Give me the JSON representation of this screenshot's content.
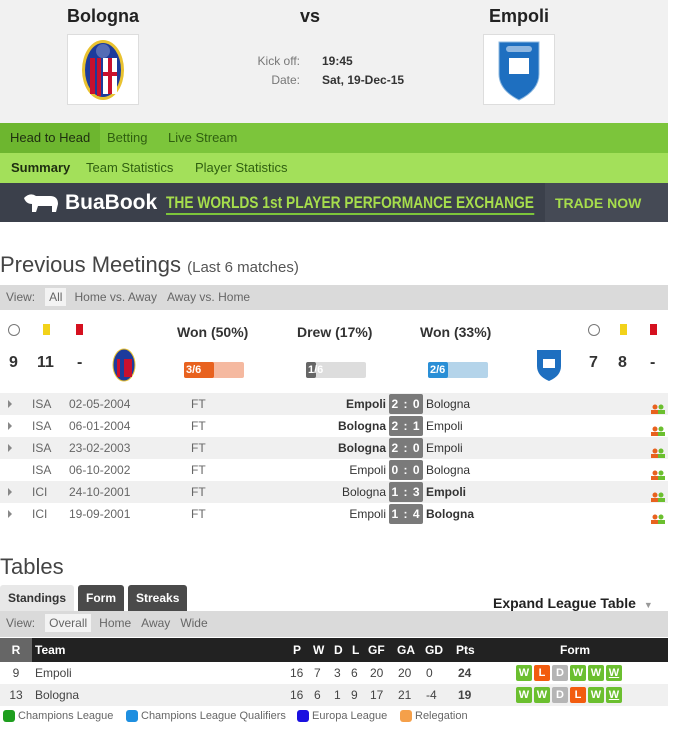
{
  "match": {
    "home": "Bologna",
    "vs": "vs",
    "away": "Empoli",
    "kickoff_label": "Kick off:",
    "kickoff": "19:45",
    "date_label": "Date:",
    "date": "Sat, 19-Dec-15"
  },
  "nav": {
    "tabs": [
      "Head to Head",
      "Betting",
      "Live Stream"
    ],
    "subtabs": [
      "Summary",
      "Team Statistics",
      "Player Statistics"
    ]
  },
  "banner": {
    "brand": "BuaBook",
    "tagline": "THE WORLDS 1st PLAYER PERFORMANCE EXCHANGE",
    "cta": "TRADE NOW"
  },
  "meetings": {
    "title": "Previous Meetings",
    "subtitle": "(Last 6 matches)",
    "view_label": "View:",
    "views": [
      "All",
      "Home vs. Away",
      "Away vs. Home"
    ],
    "home_stats": {
      "goals": "9",
      "yellow": "11",
      "red": "-"
    },
    "away_stats": {
      "goals": "7",
      "yellow": "8",
      "red": "-"
    },
    "summary": [
      {
        "label": "Won (50%)",
        "value": "3/6",
        "fraction": 0.5,
        "color": "#e8621f",
        "bg": "#f5b9a0"
      },
      {
        "label": "Drew (17%)",
        "value": "1/6",
        "fraction": 0.17,
        "color": "#666666",
        "bg": "#dddddd"
      },
      {
        "label": "Won (33%)",
        "value": "2/6",
        "fraction": 0.33,
        "color": "#2a8fd6",
        "bg": "#b4d4ea"
      }
    ],
    "rows": [
      {
        "comp": "ISA",
        "date": "02-05-2004",
        "status": "FT",
        "home": "Empoli",
        "score": "2 : 0",
        "away": "Bologna",
        "winner": "home",
        "expand": true
      },
      {
        "comp": "ISA",
        "date": "06-01-2004",
        "status": "FT",
        "home": "Bologna",
        "score": "2 : 1",
        "away": "Empoli",
        "winner": "home",
        "expand": true
      },
      {
        "comp": "ISA",
        "date": "23-02-2003",
        "status": "FT",
        "home": "Bologna",
        "score": "2 : 0",
        "away": "Empoli",
        "winner": "home",
        "expand": true
      },
      {
        "comp": "ISA",
        "date": "06-10-2002",
        "status": "FT",
        "home": "Empoli",
        "score": "0 : 0",
        "away": "Bologna",
        "winner": "none",
        "expand": false
      },
      {
        "comp": "ICI",
        "date": "24-10-2001",
        "status": "FT",
        "home": "Bologna",
        "score": "1 : 3",
        "away": "Empoli",
        "winner": "away",
        "expand": true
      },
      {
        "comp": "ICI",
        "date": "19-09-2001",
        "status": "FT",
        "home": "Empoli",
        "score": "1 : 4",
        "away": "Bologna",
        "winner": "away",
        "expand": true
      }
    ]
  },
  "tables": {
    "title": "Tables",
    "tabs": [
      "Standings",
      "Form",
      "Streaks"
    ],
    "expand": "Expand League Table",
    "view_label": "View:",
    "views": [
      "Overall",
      "Home",
      "Away",
      "Wide"
    ],
    "headers": {
      "r": "R",
      "team": "Team",
      "p": "P",
      "w": "W",
      "d": "D",
      "l": "L",
      "gf": "GF",
      "ga": "GA",
      "gd": "GD",
      "pts": "Pts",
      "form": "Form"
    },
    "rows": [
      {
        "r": "9",
        "team": "Empoli",
        "p": "16",
        "w": "7",
        "d": "3",
        "l": "6",
        "gf": "20",
        "ga": "20",
        "gd": "0",
        "pts": "24",
        "form": [
          "W",
          "L",
          "D",
          "W",
          "W",
          "W"
        ]
      },
      {
        "r": "13",
        "team": "Bologna",
        "p": "16",
        "w": "6",
        "d": "1",
        "l": "9",
        "gf": "17",
        "ga": "21",
        "gd": "-4",
        "pts": "19",
        "form": [
          "W",
          "W",
          "D",
          "L",
          "W",
          "W"
        ]
      }
    ],
    "legend": [
      {
        "label": "Champions League",
        "color": "#1e9e1e"
      },
      {
        "label": "Champions League Qualifiers",
        "color": "#1e8fe0"
      },
      {
        "label": "Europa League",
        "color": "#1a10e0"
      },
      {
        "label": "Relegation",
        "color": "#f5a04a"
      }
    ]
  }
}
